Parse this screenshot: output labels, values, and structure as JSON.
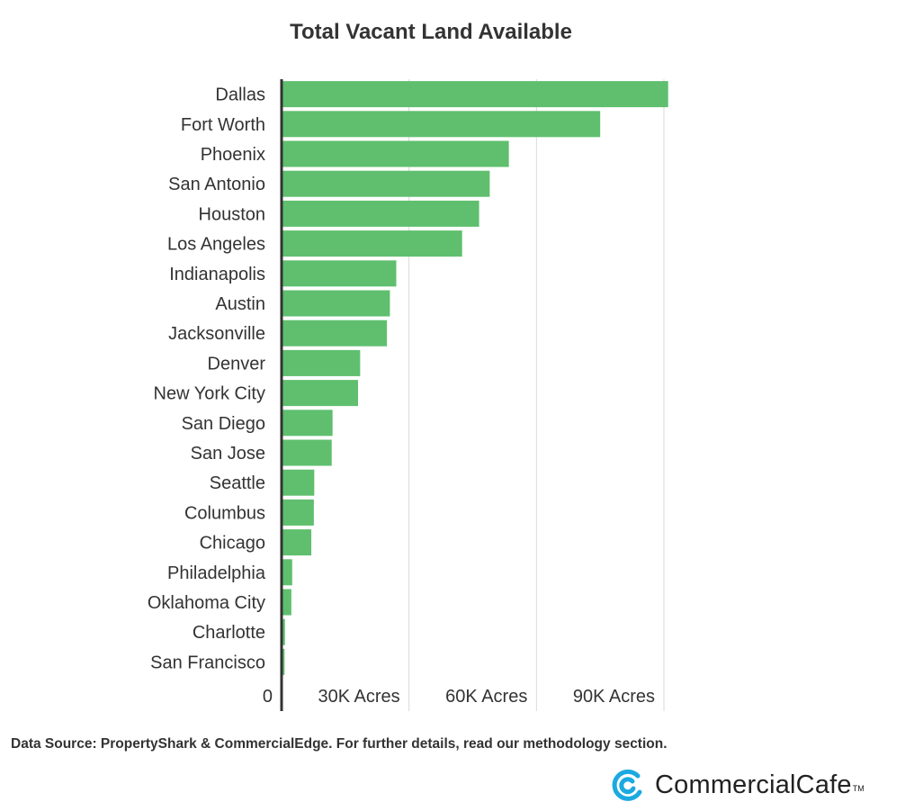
{
  "chart_data": {
    "type": "bar",
    "orientation": "horizontal",
    "title": "Total Vacant Land Available",
    "categories": [
      "Dallas",
      "Fort Worth",
      "Phoenix",
      "San Antonio",
      "Houston",
      "Los Angeles",
      "Indianapolis",
      "Austin",
      "Jacksonville",
      "Denver",
      "New York City",
      "San Diego",
      "San Jose",
      "Seattle",
      "Columbus",
      "Chicago",
      "Philadelphia",
      "Oklahoma City",
      "Charlotte",
      "San Francisco"
    ],
    "values": [
      91000,
      75000,
      53500,
      49000,
      46500,
      42500,
      27000,
      25500,
      24800,
      18500,
      18000,
      12000,
      11800,
      7700,
      7600,
      7000,
      2500,
      2300,
      800,
      700
    ],
    "xlim": [
      0,
      100000
    ],
    "xticks": [
      0,
      30000,
      60000,
      90000
    ],
    "xtick_labels": [
      "0",
      "30K Acres",
      "60K Acres",
      "90K Acres"
    ],
    "bar_color": "#5fbf6e",
    "grid": "vertical",
    "legend": "none"
  },
  "footer": {
    "source": "Data Source: PropertyShark & CommercialEdge. For further details, read our methodology section."
  },
  "logo": {
    "name": "CommercialCafe",
    "tm": "TM",
    "icon": "commercialcafe-logo-icon",
    "color": "#1ba9e1"
  }
}
